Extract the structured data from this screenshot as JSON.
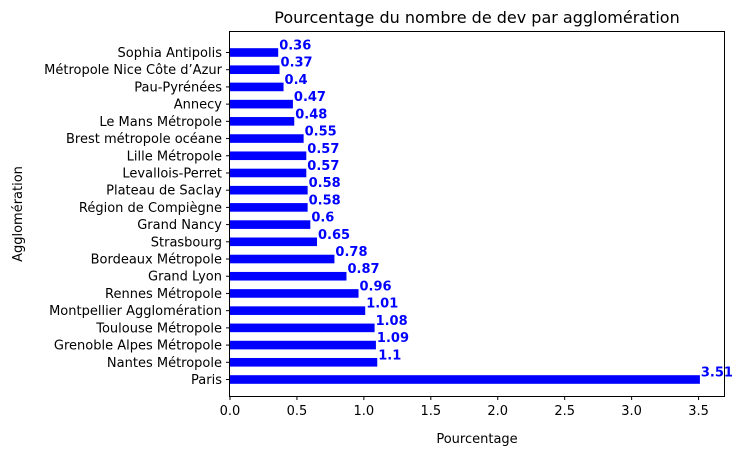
{
  "chart_data": {
    "type": "bar",
    "orientation": "horizontal",
    "title": "Pourcentage du nombre de dev par agglomération",
    "xlabel": "Pourcentage",
    "ylabel": "Agglomération",
    "categories": [
      "Paris",
      "Nantes Métropole",
      "Grenoble Alpes Métropole",
      "Toulouse Métropole",
      "Montpellier Agglomération",
      "Rennes Métropole",
      "Grand Lyon",
      "Bordeaux Métropole",
      "Strasbourg",
      "Grand Nancy",
      "Région de Compiègne",
      "Plateau de Saclay",
      "Levallois-Perret",
      "Lille Métropole",
      "Brest métropole océane",
      "Le Mans Métropole",
      "Annecy",
      "Pau-Pyrénées",
      "Métropole Nice Côte d’Azur",
      "Sophia Antipolis"
    ],
    "values": [
      3.51,
      1.1,
      1.09,
      1.08,
      1.01,
      0.96,
      0.87,
      0.78,
      0.65,
      0.6,
      0.58,
      0.58,
      0.57,
      0.57,
      0.55,
      0.48,
      0.47,
      0.4,
      0.37,
      0.36
    ],
    "value_labels": [
      "3.51",
      "1.1",
      "1.09",
      "1.08",
      "1.01",
      "0.96",
      "0.87",
      "0.78",
      "0.65",
      "0.6",
      "0.58",
      "0.58",
      "0.57",
      "0.57",
      "0.55",
      "0.48",
      "0.47",
      "0.4",
      "0.37",
      "0.36"
    ],
    "xticks": [
      "0.0",
      "0.5",
      "1.0",
      "1.5",
      "2.0",
      "2.5",
      "3.0",
      "3.5"
    ],
    "xlim": [
      0,
      3.69
    ],
    "grid": false,
    "legend": "none",
    "bar_color": "#0000ff",
    "label_color": "#0000ff"
  }
}
